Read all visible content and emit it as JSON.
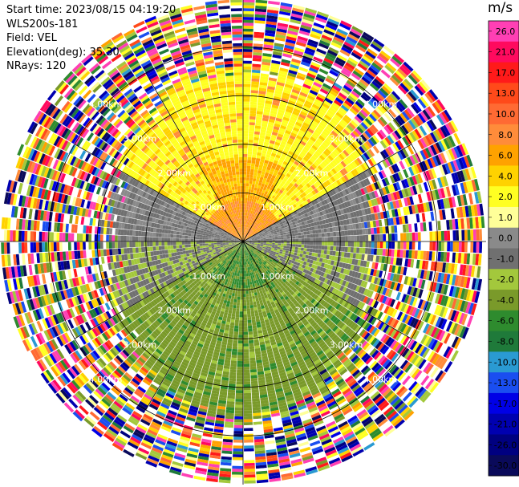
{
  "header": {
    "start_time": "Start time: 2023/08/15 04:19:20",
    "instrument": "WLS200s-181",
    "field": "Field: VEL",
    "elevation": "Elevation(deg): 35.30",
    "nrays": "NRays: 120"
  },
  "colorbar": {
    "unit": "m/s",
    "levels": [
      {
        "label": "26.0",
        "color": "#ff3fb4"
      },
      {
        "label": "21.0",
        "color": "#ff0a5e"
      },
      {
        "label": "17.0",
        "color": "#ff1a1a"
      },
      {
        "label": "13.0",
        "color": "#ff4a1a"
      },
      {
        "label": "10.0",
        "color": "#ff6a33"
      },
      {
        "label": "8.0",
        "color": "#ff8c3a"
      },
      {
        "label": "6.0",
        "color": "#ffa200"
      },
      {
        "label": "4.0",
        "color": "#ffd200"
      },
      {
        "label": "2.0",
        "color": "#ffff22"
      },
      {
        "label": "1.0",
        "color": "#ffff99"
      },
      {
        "label": "0.0",
        "color": "#8a8a8a"
      },
      {
        "label": "-1.0",
        "color": "#707070"
      },
      {
        "label": "-2.0",
        "color": "#a3c83c"
      },
      {
        "label": "-4.0",
        "color": "#7a9a2a"
      },
      {
        "label": "-6.0",
        "color": "#2e8b2e"
      },
      {
        "label": "-8.0",
        "color": "#1f7a3a"
      },
      {
        "label": "-10.0",
        "color": "#2a9ad2"
      },
      {
        "label": "-13.0",
        "color": "#1a4ef0"
      },
      {
        "label": "-17.0",
        "color": "#0000e6"
      },
      {
        "label": "-21.0",
        "color": "#0000b0"
      },
      {
        "label": "-26.0",
        "color": "#000080"
      },
      {
        "label": "-30.0",
        "color": "#0a0a5a"
      }
    ]
  },
  "chart_data": {
    "type": "heatmap",
    "projection": "polar-ppi",
    "field": "VEL",
    "units": "m/s",
    "nrays": 120,
    "range_rings_km": [
      1.0,
      2.0,
      3.0,
      4.0
    ],
    "ring_labels": [
      "1.00km",
      "2.00km",
      "3.00km",
      "4.00km"
    ],
    "max_range_km": 5.0,
    "vmin": -30.0,
    "vmax": 26.0
  }
}
